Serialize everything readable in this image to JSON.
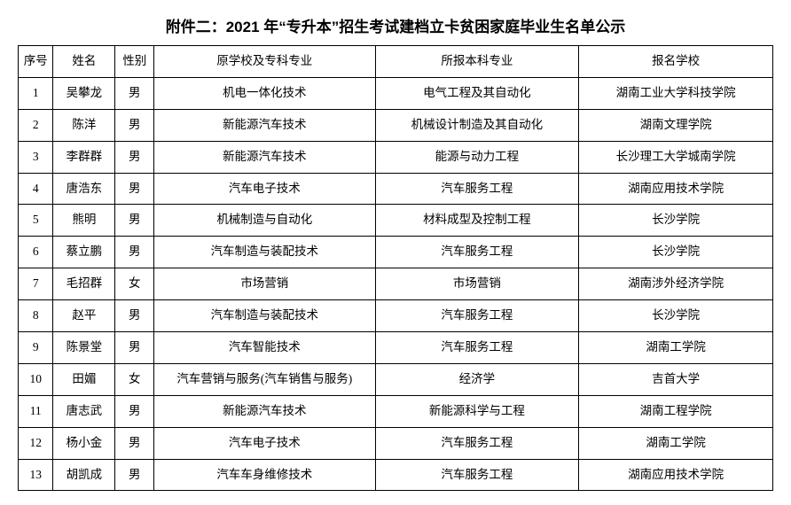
{
  "title": "附件二：2021 年“专升本”招生考试建档立卡贫困家庭毕业生名单公示",
  "columns": [
    "序号",
    "姓名",
    "性别",
    "原学校及专科专业",
    "所报本科专业",
    "报名学校"
  ],
  "rows": [
    [
      "1",
      "吴攀龙",
      "男",
      "机电一体化技术",
      "电气工程及其自动化",
      "湖南工业大学科技学院"
    ],
    [
      "2",
      "陈洋",
      "男",
      "新能源汽车技术",
      "机械设计制造及其自动化",
      "湖南文理学院"
    ],
    [
      "3",
      "李群群",
      "男",
      "新能源汽车技术",
      "能源与动力工程",
      "长沙理工大学城南学院"
    ],
    [
      "4",
      "唐浩东",
      "男",
      "汽车电子技术",
      "汽车服务工程",
      "湖南应用技术学院"
    ],
    [
      "5",
      "熊明",
      "男",
      "机械制造与自动化",
      "材料成型及控制工程",
      "长沙学院"
    ],
    [
      "6",
      "蔡立鹏",
      "男",
      "汽车制造与装配技术",
      "汽车服务工程",
      "长沙学院"
    ],
    [
      "7",
      "毛招群",
      "女",
      "市场营销",
      "市场营销",
      "湖南涉外经济学院"
    ],
    [
      "8",
      "赵平",
      "男",
      "汽车制造与装配技术",
      "汽车服务工程",
      "长沙学院"
    ],
    [
      "9",
      "陈景堂",
      "男",
      "汽车智能技术",
      "汽车服务工程",
      "湖南工学院"
    ],
    [
      "10",
      "田媚",
      "女",
      "汽车营销与服务(汽车销售与服务)",
      "经济学",
      "吉首大学"
    ],
    [
      "11",
      "唐志武",
      "男",
      "新能源汽车技术",
      "新能源科学与工程",
      "湖南工程学院"
    ],
    [
      "12",
      "杨小金",
      "男",
      "汽车电子技术",
      "汽车服务工程",
      "湖南工学院"
    ],
    [
      "13",
      "胡凯成",
      "男",
      "汽车车身维修技术",
      "汽车服务工程",
      "湖南应用技术学院"
    ]
  ]
}
